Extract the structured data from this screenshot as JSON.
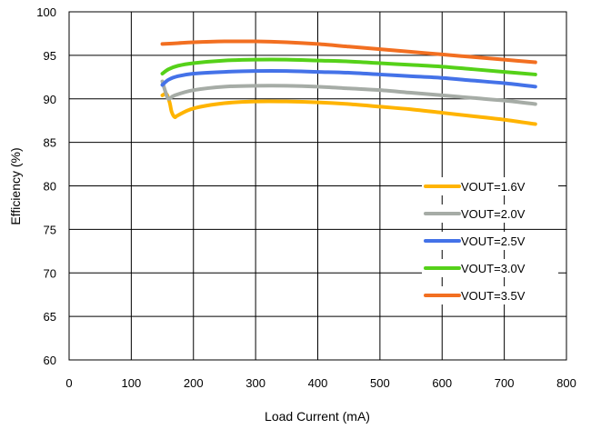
{
  "chart_data": {
    "type": "line",
    "title": "",
    "xlabel": "Load Current (mA)",
    "ylabel": "Efficiency (%)",
    "xlim": [
      0,
      800
    ],
    "ylim": [
      60,
      100
    ],
    "xticks": [
      0,
      100,
      200,
      300,
      400,
      500,
      600,
      700,
      800
    ],
    "yticks": [
      60,
      65,
      70,
      75,
      80,
      85,
      90,
      95,
      100
    ],
    "grid": true,
    "legend_position": "lower-right",
    "series": [
      {
        "name": "VOUT=1.6V",
        "color": "#FFB400",
        "x": [
          150,
          155,
          158,
          162,
          165,
          170,
          175,
          200,
          250,
          300,
          350,
          400,
          450,
          500,
          550,
          600,
          650,
          700,
          750
        ],
        "y": [
          90.4,
          90.6,
          90.4,
          89.5,
          88.5,
          87.9,
          88.1,
          88.9,
          89.5,
          89.7,
          89.7,
          89.6,
          89.4,
          89.1,
          88.8,
          88.4,
          88.0,
          87.6,
          87.1
        ]
      },
      {
        "name": "VOUT=2.0V",
        "color": "#A6ACA6",
        "x": [
          150,
          155,
          160,
          170,
          200,
          250,
          300,
          350,
          400,
          450,
          500,
          550,
          600,
          650,
          700,
          750
        ],
        "y": [
          92.0,
          90.8,
          90.0,
          90.4,
          91.0,
          91.4,
          91.5,
          91.5,
          91.4,
          91.2,
          91.0,
          90.7,
          90.4,
          90.1,
          89.8,
          89.4
        ]
      },
      {
        "name": "VOUT=2.5V",
        "color": "#4472E8",
        "x": [
          150,
          160,
          175,
          200,
          250,
          300,
          350,
          400,
          450,
          500,
          550,
          600,
          650,
          700,
          750
        ],
        "y": [
          91.6,
          92.2,
          92.6,
          92.9,
          93.1,
          93.2,
          93.2,
          93.1,
          93.0,
          92.8,
          92.6,
          92.4,
          92.1,
          91.8,
          91.4
        ]
      },
      {
        "name": "VOUT=3.0V",
        "color": "#55D119",
        "x": [
          150,
          160,
          175,
          200,
          250,
          300,
          350,
          400,
          450,
          500,
          550,
          600,
          650,
          700,
          750
        ],
        "y": [
          92.9,
          93.4,
          93.8,
          94.1,
          94.4,
          94.5,
          94.5,
          94.4,
          94.3,
          94.1,
          93.9,
          93.7,
          93.4,
          93.1,
          92.8
        ]
      },
      {
        "name": "VOUT=3.5V",
        "color": "#F26F21",
        "x": [
          150,
          175,
          200,
          250,
          300,
          350,
          400,
          450,
          500,
          550,
          600,
          650,
          700,
          750
        ],
        "y": [
          96.3,
          96.4,
          96.5,
          96.6,
          96.6,
          96.5,
          96.3,
          96.0,
          95.7,
          95.4,
          95.1,
          94.8,
          94.5,
          94.2
        ]
      }
    ]
  }
}
